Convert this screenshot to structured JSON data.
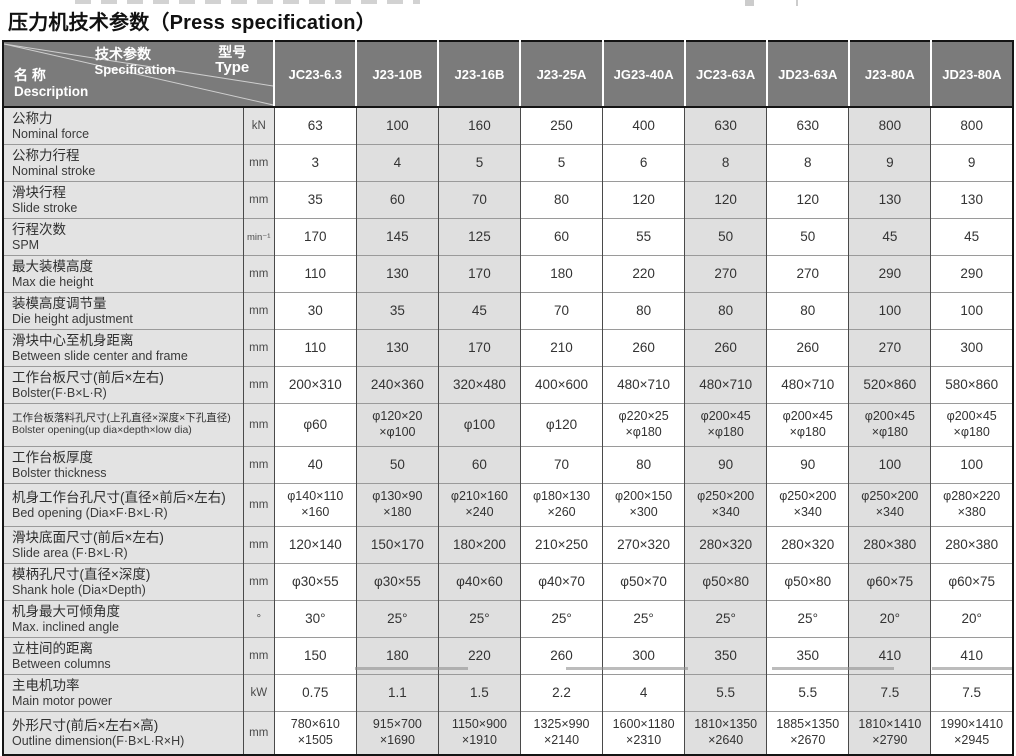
{
  "title": "压力机技术参数（Press specification）",
  "colors": {
    "header_bg": "#7b7b7b",
    "header_text": "#ffffff",
    "label_bg": "#e3e3e3",
    "shaded_cell_bg": "#dfdfdf",
    "outer_border": "#141414",
    "grid_line": "#9a9a9a"
  },
  "table": {
    "corner": {
      "spec_zh": "技术参数",
      "spec_en": "Specification",
      "type_zh": "型号",
      "type_en": "Type",
      "name_zh": "名 称",
      "name_en": "Description"
    },
    "models": [
      "JC23-6.3",
      "J23-10B",
      "J23-16B",
      "J23-25A",
      "JG23-40A",
      "JC23-63A",
      "JD23-63A",
      "J23-80A",
      "JD23-80A"
    ],
    "shaded_columns": [
      1,
      2,
      5,
      7
    ],
    "rows": [
      {
        "zh": "公称力",
        "en": "Nominal force",
        "unit": "kN",
        "values": [
          "63",
          "100",
          "160",
          "250",
          "400",
          "630",
          "630",
          "800",
          "800"
        ]
      },
      {
        "zh": "公称力行程",
        "en": "Nominal stroke",
        "unit": "mm",
        "values": [
          "3",
          "4",
          "5",
          "5",
          "6",
          "8",
          "8",
          "9",
          "9"
        ]
      },
      {
        "zh": "滑块行程",
        "en": "Slide stroke",
        "unit": "mm",
        "values": [
          "35",
          "60",
          "70",
          "80",
          "120",
          "120",
          "120",
          "130",
          "130"
        ]
      },
      {
        "zh": "行程次数",
        "en": "SPM",
        "unit": "min⁻¹",
        "values": [
          "170",
          "145",
          "125",
          "60",
          "55",
          "50",
          "50",
          "45",
          "45"
        ]
      },
      {
        "zh": "最大装模高度",
        "en": "Max die height",
        "unit": "mm",
        "values": [
          "110",
          "130",
          "170",
          "180",
          "220",
          "270",
          "270",
          "290",
          "290"
        ]
      },
      {
        "zh": "装模高度调节量",
        "en": "Die height adjustment",
        "unit": "mm",
        "values": [
          "30",
          "35",
          "45",
          "70",
          "80",
          "80",
          "80",
          "100",
          "100"
        ]
      },
      {
        "zh": "滑块中心至机身距离",
        "en": "Between slide center and frame",
        "unit": "mm",
        "values": [
          "110",
          "130",
          "170",
          "210",
          "260",
          "260",
          "260",
          "270",
          "300"
        ]
      },
      {
        "zh": "工作台板尺寸(前后×左右)",
        "en": "Bolster(F·B×L·R)",
        "unit": "mm",
        "values": [
          "200×310",
          "240×360",
          "320×480",
          "400×600",
          "480×710",
          "480×710",
          "480×710",
          "520×860",
          "580×860"
        ]
      },
      {
        "zh": "工作台板落料孔尺寸(上孔直径×深度×下孔直径)",
        "en": "Bolster opening(up dia×depth×low dia)",
        "unit": "mm",
        "values": [
          "φ60",
          "φ120×20\n×φ100",
          "φ100",
          "φ120",
          "φ220×25\n×φ180",
          "φ200×45\n×φ180",
          "φ200×45\n×φ180",
          "φ200×45\n×φ180",
          "φ200×45\n×φ180"
        ]
      },
      {
        "zh": "工作台板厚度",
        "en": "Bolster thickness",
        "unit": "mm",
        "values": [
          "40",
          "50",
          "60",
          "70",
          "80",
          "90",
          "90",
          "100",
          "100"
        ]
      },
      {
        "zh": "机身工作台孔尺寸(直径×前后×左右)",
        "en": "Bed opening (Dia×F·B×L·R)",
        "unit": "mm",
        "values": [
          "φ140×110\n×160",
          "φ130×90\n×180",
          "φ210×160\n×240",
          "φ180×130\n×260",
          "φ200×150\n×300",
          "φ250×200\n×340",
          "φ250×200\n×340",
          "φ250×200\n×340",
          "φ280×220\n×380"
        ]
      },
      {
        "zh": "滑块底面尺寸(前后×左右)",
        "en": "Slide area (F·B×L·R)",
        "unit": "mm",
        "values": [
          "120×140",
          "150×170",
          "180×200",
          "210×250",
          "270×320",
          "280×320",
          "280×320",
          "280×380",
          "280×380"
        ]
      },
      {
        "zh": "模柄孔尺寸(直径×深度)",
        "en": "Shank hole (Dia×Depth)",
        "unit": "mm",
        "values": [
          "φ30×55",
          "φ30×55",
          "φ40×60",
          "φ40×70",
          "φ50×70",
          "φ50×80",
          "φ50×80",
          "φ60×75",
          "φ60×75"
        ]
      },
      {
        "zh": "机身最大可倾角度",
        "en": "Max. inclined angle",
        "unit": "°",
        "values": [
          "30°",
          "25°",
          "25°",
          "25°",
          "25°",
          "25°",
          "25°",
          "20°",
          "20°"
        ]
      },
      {
        "zh": "立柱间的距离",
        "en": "Between columns",
        "unit": "mm",
        "values": [
          "150",
          "180",
          "220",
          "260",
          "300",
          "350",
          "350",
          "410",
          "410"
        ]
      },
      {
        "zh": "主电机功率",
        "en": "Main motor power",
        "unit": "kW",
        "values": [
          "0.75",
          "1.1",
          "1.5",
          "2.2",
          "4",
          "5.5",
          "5.5",
          "7.5",
          "7.5"
        ]
      },
      {
        "zh": "外形尺寸(前后×左右×高)",
        "en": "Outline dimension(F·B×L·R×H)",
        "unit": "mm",
        "values": [
          "780×610\n×1505",
          "915×700\n×1690",
          "1150×900\n×1910",
          "1325×990\n×2140",
          "1600×1180\n×2310",
          "1810×1350\n×2640",
          "1885×1350\n×2670",
          "1810×1410\n×2790",
          "1990×1410\n×2945"
        ]
      }
    ]
  }
}
